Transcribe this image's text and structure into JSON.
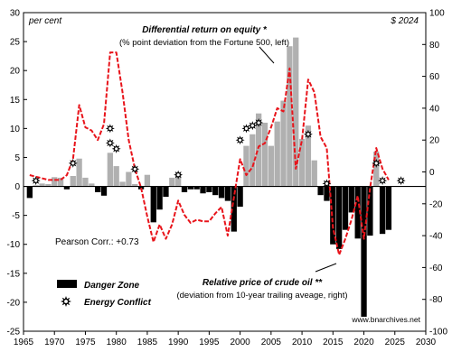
{
  "chart_data": {
    "type": "bar",
    "left_axis_unit": "per cent",
    "right_axis_unit": "$ 2024",
    "xlim": [
      1965,
      2030
    ],
    "left_ylim": [
      -25,
      30
    ],
    "right_ylim": [
      -100,
      100
    ],
    "x_ticks": [
      1965,
      1970,
      1975,
      1980,
      1985,
      1990,
      1995,
      2000,
      2005,
      2010,
      2015,
      2020,
      2025,
      2030
    ],
    "left_y_ticks": [
      -25,
      -20,
      -15,
      -10,
      -5,
      0,
      5,
      10,
      15,
      20,
      25,
      30
    ],
    "right_y_ticks": [
      -100,
      -80,
      -60,
      -40,
      -20,
      0,
      20,
      40,
      60,
      80,
      100
    ],
    "series": [
      {
        "name": "Differential return on equity *",
        "note": "(% point deviation from the Fortune 500, left)",
        "type": "bar",
        "axis": "left",
        "positive_color": "#b0b0b0",
        "negative_color": "#000000",
        "x": [
          1966,
          1967,
          1968,
          1969,
          1970,
          1971,
          1972,
          1973,
          1974,
          1975,
          1976,
          1977,
          1978,
          1979,
          1980,
          1981,
          1982,
          1983,
          1984,
          1985,
          1986,
          1987,
          1988,
          1989,
          1990,
          1991,
          1992,
          1993,
          1994,
          1995,
          1996,
          1997,
          1998,
          1999,
          2000,
          2001,
          2002,
          2003,
          2004,
          2005,
          2006,
          2007,
          2008,
          2009,
          2010,
          2011,
          2012,
          2013,
          2014,
          2015,
          2016,
          2017,
          2018,
          2019,
          2020,
          2021,
          2022,
          2023,
          2024
        ],
        "values": [
          -2,
          0.2,
          0.5,
          0.4,
          1.6,
          1.5,
          -0.5,
          1.8,
          4.8,
          1.5,
          0.5,
          -1,
          -1.6,
          5.8,
          3.5,
          0.8,
          2.5,
          0.4,
          -0.5,
          2,
          -6.2,
          -4,
          -1.8,
          1.5,
          2.3,
          -1,
          -0.5,
          -0.5,
          -1.2,
          -1,
          -1.5,
          -2,
          -2.5,
          -7.8,
          -3.5,
          7,
          9,
          12.6,
          11,
          7,
          11.2,
          14.8,
          24.2,
          25.7,
          8.2,
          10.5,
          4.5,
          -1.5,
          -2.5,
          -10,
          -10.8,
          -7.5,
          -4.5,
          -9,
          -22.5,
          -8.5,
          6,
          -8.2,
          -7.5
        ]
      },
      {
        "name": "Relative price of crude oil **",
        "note": "(deviation from 10-year trailing aveage, right)",
        "type": "line",
        "axis": "right",
        "color": "#e8141b",
        "x": [
          1966,
          1967,
          1968,
          1969,
          1970,
          1971,
          1972,
          1973,
          1974,
          1975,
          1976,
          1977,
          1978,
          1979,
          1980,
          1981,
          1982,
          1983,
          1984,
          1985,
          1986,
          1987,
          1988,
          1989,
          1990,
          1991,
          1992,
          1993,
          1994,
          1995,
          1996,
          1997,
          1998,
          1999,
          2000,
          2001,
          2002,
          2003,
          2004,
          2005,
          2006,
          2007,
          2008,
          2009,
          2010,
          2011,
          2012,
          2013,
          2014,
          2015,
          2016,
          2017,
          2018,
          2019,
          2020,
          2021,
          2022,
          2023,
          2024
        ],
        "values": [
          -2,
          -3,
          -4,
          -5,
          -5,
          -5,
          -2,
          8,
          42,
          28,
          26,
          20,
          30,
          75,
          75,
          50,
          20,
          2,
          -10,
          -28,
          -44,
          -33,
          -42,
          -33,
          -18,
          -27,
          -32,
          -30,
          -31,
          -31,
          -26,
          -22,
          -40,
          -16,
          8,
          -2,
          3,
          16,
          18,
          28,
          40,
          38,
          65,
          2,
          20,
          58,
          50,
          22,
          15,
          -35,
          -52,
          -42,
          -30,
          -15,
          -42,
          -10,
          15,
          2,
          -5
        ]
      }
    ],
    "danger_zone_legend": "Danger Zone",
    "energy_conflict_legend": "Energy Conflict",
    "energy_conflict_markers": [
      {
        "x": 1967,
        "y": 1
      },
      {
        "x": 1973,
        "y": 4
      },
      {
        "x": 1979,
        "y": 10
      },
      {
        "x": 1979,
        "y": 7.5
      },
      {
        "x": 1980,
        "y": 6.5
      },
      {
        "x": 1983,
        "y": 3
      },
      {
        "x": 1990,
        "y": 2
      },
      {
        "x": 2000,
        "y": 8
      },
      {
        "x": 2001,
        "y": 10
      },
      {
        "x": 2002,
        "y": 10.5
      },
      {
        "x": 2003,
        "y": 11
      },
      {
        "x": 2011,
        "y": 9
      },
      {
        "x": 2014,
        "y": 0.5
      },
      {
        "x": 2022,
        "y": 4
      },
      {
        "x": 2023,
        "y": 1
      },
      {
        "x": 2026,
        "y": 1
      }
    ],
    "pearson_label": "Pearson Corr.: +0.73",
    "source": "www.bnarchives.net",
    "grid": false
  }
}
